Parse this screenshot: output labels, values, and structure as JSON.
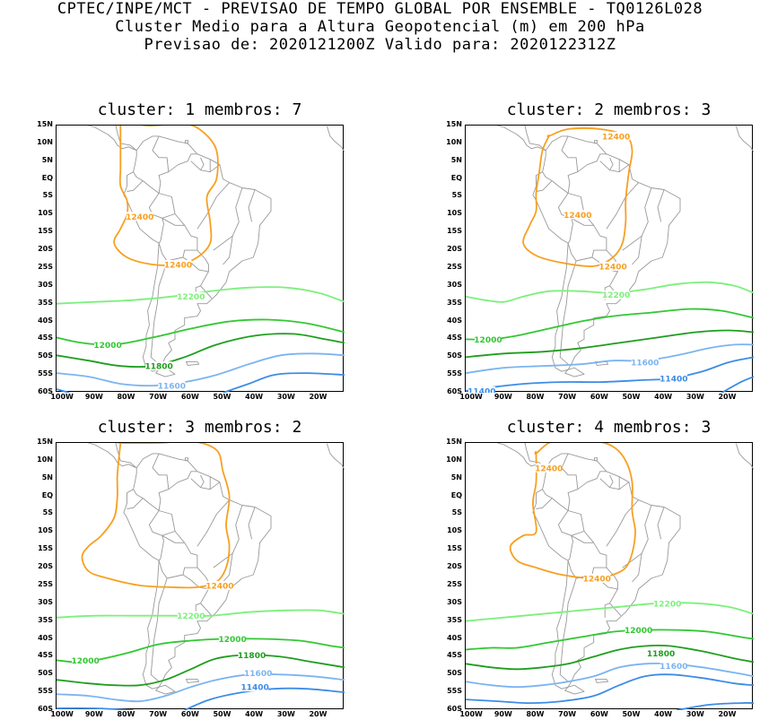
{
  "header": {
    "line1": "CPTEC/INPE/MCT - PREVISAO DE TEMPO GLOBAL POR ENSEMBLE - TQ0126L028",
    "line2": "Cluster Medio para a Altura Geopotencial (m) em 200 hPa",
    "line3": "Previsao de: 2020121200Z   Valido para: 2020122312Z"
  },
  "axes": {
    "lat_labels": [
      "15N",
      "10N",
      "5N",
      "EQ",
      "5S",
      "10S",
      "15S",
      "20S",
      "25S",
      "30S",
      "35S",
      "40S",
      "45S",
      "50S",
      "55S",
      "60S"
    ],
    "lon_labels": [
      "100W",
      "90W",
      "80W",
      "70W",
      "60W",
      "50W",
      "40W",
      "30W",
      "20W"
    ]
  },
  "colors": {
    "c12400": "#f7a021",
    "c12200": "#7cf07c",
    "c12000": "#32c832",
    "c11800": "#1e9e1e",
    "c11600": "#7cb4f0",
    "c11400": "#3c8ce6",
    "land": "#999999"
  },
  "panels": [
    {
      "title": "cluster: 1   membros: 7",
      "labels": [
        {
          "text": "12400",
          "lon": -76,
          "lat": -10.5,
          "level": "c12400"
        },
        {
          "text": "12400",
          "lon": -64,
          "lat": -24,
          "level": "c12400"
        },
        {
          "text": "12200",
          "lon": -60,
          "lat": -33,
          "level": "c12200"
        },
        {
          "text": "12000",
          "lon": -86,
          "lat": -46.5,
          "level": "c12000"
        },
        {
          "text": "11800",
          "lon": -70,
          "lat": -52.5,
          "level": "c11800"
        },
        {
          "text": "11600",
          "lon": -66,
          "lat": -58,
          "level": "c11600"
        }
      ]
    },
    {
      "title": "cluster: 2   membros: 3",
      "labels": [
        {
          "text": "12400",
          "lon": -55,
          "lat": 12,
          "level": "c12400"
        },
        {
          "text": "12400",
          "lon": -67,
          "lat": -10,
          "level": "c12400"
        },
        {
          "text": "12400",
          "lon": -56,
          "lat": -24.5,
          "level": "c12400"
        },
        {
          "text": "12200",
          "lon": -55,
          "lat": -32.5,
          "level": "c12200"
        },
        {
          "text": "12000",
          "lon": -95,
          "lat": -45,
          "level": "c12000"
        },
        {
          "text": "11600",
          "lon": -46,
          "lat": -51.5,
          "level": "c11600"
        },
        {
          "text": "11400",
          "lon": -37,
          "lat": -56,
          "level": "c11400"
        },
        {
          "text": "11400",
          "lon": -97,
          "lat": -59.5,
          "level": "c11400"
        }
      ]
    },
    {
      "title": "cluster: 3   membros: 2",
      "labels": [
        {
          "text": "12400",
          "lon": -51,
          "lat": -25,
          "level": "c12400"
        },
        {
          "text": "12200",
          "lon": -60,
          "lat": -33.5,
          "level": "c12200"
        },
        {
          "text": "12000",
          "lon": -47,
          "lat": -40,
          "level": "c12000"
        },
        {
          "text": "12000",
          "lon": -93,
          "lat": -46,
          "level": "c12000"
        },
        {
          "text": "11800",
          "lon": -41,
          "lat": -44.5,
          "level": "c11800"
        },
        {
          "text": "11600",
          "lon": -39,
          "lat": -49.5,
          "level": "c11600"
        },
        {
          "text": "11400",
          "lon": -40,
          "lat": -53.5,
          "level": "c11400"
        }
      ]
    },
    {
      "title": "cluster: 4   membros: 3",
      "labels": [
        {
          "text": "12400",
          "lon": -76,
          "lat": 8,
          "level": "c12400"
        },
        {
          "text": "12400",
          "lon": -61,
          "lat": -23,
          "level": "c12400"
        },
        {
          "text": "12200",
          "lon": -39,
          "lat": -30,
          "level": "c12200"
        },
        {
          "text": "12000",
          "lon": -48,
          "lat": -37.5,
          "level": "c12000"
        },
        {
          "text": "11800",
          "lon": -41,
          "lat": -44,
          "level": "c11800"
        },
        {
          "text": "11600",
          "lon": -37,
          "lat": -47.5,
          "level": "c11600"
        }
      ]
    }
  ]
}
